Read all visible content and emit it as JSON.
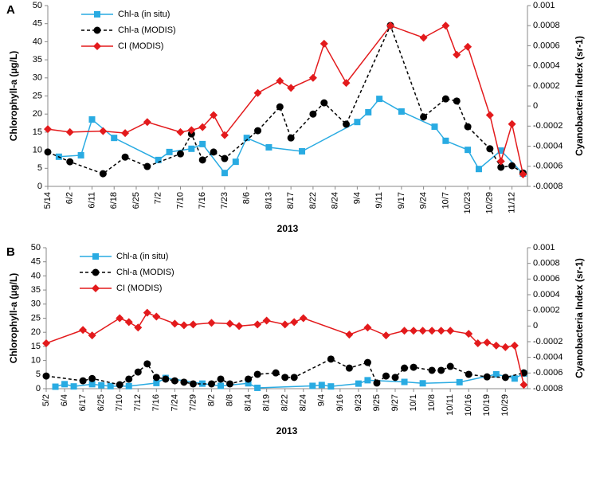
{
  "chart_data": [
    {
      "type": "line",
      "panel": "A",
      "xlabel": "2013",
      "ylabel": "Chlorophyll-a (µg/L)",
      "y2label": "Cyanobacteria Index (sr-1)",
      "categories": [
        "5/14",
        null,
        "6/2",
        null,
        "6/11",
        null,
        "6/18",
        null,
        "6/25",
        null,
        "7/2",
        null,
        "7/10",
        null,
        "7/16",
        null,
        "7/23",
        null,
        "8/6",
        null,
        "8/13",
        null,
        "8/17",
        null,
        "8/22",
        null,
        "8/24",
        null,
        "9/4",
        null,
        "9/11",
        null,
        "9/17",
        null,
        "9/24",
        null,
        "10/7",
        null,
        "10/23",
        null,
        "10/29",
        null,
        "11/12",
        null
      ],
      "ylim": [
        0,
        50
      ],
      "yticks": [
        0,
        5,
        10,
        15,
        20,
        25,
        30,
        35,
        40,
        45,
        50
      ],
      "y2lim": [
        -0.0008,
        0.001
      ],
      "y2ticks": [
        -0.0008,
        -0.0006,
        -0.0004,
        -0.0002,
        0,
        0.0002,
        0.0004,
        0.0006,
        0.0008,
        0.001
      ],
      "series": [
        {
          "name": "Chl-a (in situ)",
          "color": "#29abe2",
          "marker": "square",
          "linestyle": "solid",
          "values": [
            null,
            8.2,
            null,
            8.6,
            18.5,
            null,
            13.4,
            null,
            null,
            null,
            7.3,
            9.5,
            null,
            10.4,
            11.7,
            null,
            3.7,
            6.8,
            13.4,
            null,
            10.8,
            null,
            null,
            9.7,
            null,
            null,
            null,
            null,
            17.8,
            20.5,
            24.2,
            null,
            20.7,
            null,
            null,
            16.5,
            12.6,
            null,
            10.1,
            4.8,
            null,
            9.9,
            null,
            3.5
          ]
        },
        {
          "name": "Chl-a (MODIS)",
          "color": "#000000",
          "marker": "circle",
          "linestyle": "dashed",
          "values": [
            9.5,
            null,
            6.8,
            null,
            null,
            3.5,
            null,
            8.1,
            null,
            5.5,
            null,
            null,
            9,
            14.5,
            7.3,
            9.5,
            7.7,
            null,
            null,
            15.4,
            null,
            22,
            13.4,
            null,
            20,
            23.1,
            null,
            17.2,
            null,
            null,
            null,
            44.5,
            null,
            null,
            19.2,
            null,
            24.2,
            23.6,
            16.5,
            null,
            10.4,
            5.3,
            5.7,
            3.7
          ]
        },
        {
          "name": "CI (MODIS)",
          "color": "#e31a1c",
          "marker": "diamond",
          "linestyle": "solid",
          "axis": "y2",
          "values": [
            -0.00023,
            null,
            -0.00026,
            null,
            null,
            -0.00025,
            null,
            -0.00027,
            null,
            -0.00016,
            null,
            null,
            -0.00026,
            -0.00024,
            -0.00021,
            -9e-05,
            -0.00029,
            null,
            null,
            0.00013,
            null,
            0.00025,
            0.00018,
            null,
            0.00028,
            0.00062,
            null,
            0.00023,
            null,
            null,
            null,
            0.0008,
            null,
            null,
            0.00068,
            null,
            0.0008,
            0.00051,
            0.00059,
            null,
            -9e-05,
            -0.00055,
            -0.00018,
            -0.00068
          ]
        }
      ]
    },
    {
      "type": "line",
      "panel": "B",
      "xlabel": "2013",
      "ylabel": "Chlorophyll-a (µg/L)",
      "y2label": "Cyanobacteria Index (sr-1)",
      "categories": [
        "5/2",
        null,
        "6/4",
        null,
        "6/17",
        null,
        "6/25",
        null,
        "7/10",
        null,
        "7/12",
        null,
        "7/16",
        null,
        "7/24",
        null,
        "7/29",
        null,
        "8/2",
        null,
        "8/8",
        null,
        "8/14",
        null,
        "8/19",
        null,
        "8/22",
        null,
        "8/24",
        null,
        "9/4",
        null,
        "9/16",
        null,
        "9/23",
        null,
        "9/25",
        null,
        "9/27",
        null,
        "10/1",
        null,
        "10/8",
        null,
        "10/11",
        null,
        "10/16",
        null,
        "10/19",
        null,
        "10/29",
        null,
        null
      ],
      "ylim": [
        0,
        50
      ],
      "yticks": [
        0,
        5,
        10,
        15,
        20,
        25,
        30,
        35,
        40,
        45,
        50
      ],
      "y2lim": [
        -0.0008,
        0.001
      ],
      "y2ticks": [
        -0.0008,
        -0.0006,
        -0.0004,
        -0.0002,
        0,
        0.0002,
        0.0004,
        0.0006,
        0.0008,
        0.001
      ],
      "series": [
        {
          "name": "Chl-a (in situ)",
          "color": "#29abe2",
          "marker": "square",
          "linestyle": "solid",
          "values": [
            null,
            0.7,
            1.6,
            0.8,
            null,
            1.6,
            1.2,
            0.9,
            null,
            0.9,
            null,
            null,
            2,
            3.8,
            null,
            null,
            null,
            1.8,
            null,
            1,
            null,
            null,
            1.9,
            0.3,
            null,
            null,
            null,
            null,
            null,
            1,
            1.3,
            0.8,
            null,
            null,
            1.8,
            3,
            null,
            null,
            null,
            2.4,
            null,
            1.9,
            null,
            null,
            null,
            2.3,
            null,
            null,
            null,
            5.1,
            null,
            3.6,
            5.4
          ]
        },
        {
          "name": "Chl-a (MODIS)",
          "color": "#000000",
          "marker": "circle",
          "linestyle": "dashed",
          "values": [
            4.5,
            null,
            null,
            null,
            2.8,
            3.6,
            null,
            null,
            1.4,
            3.4,
            5.9,
            8.8,
            4,
            3.4,
            2.8,
            2.3,
            1.7,
            null,
            1.7,
            3.4,
            1.7,
            null,
            3.4,
            5.1,
            null,
            5.6,
            4,
            4,
            null,
            null,
            null,
            10.5,
            null,
            7.3,
            null,
            9.3,
            2,
            4.5,
            4,
            7.3,
            7.6,
            null,
            6.5,
            6.5,
            7.9,
            null,
            5.1,
            null,
            4.2,
            null,
            4,
            null,
            5.6
          ]
        },
        {
          "name": "CI (MODIS)",
          "color": "#e31a1c",
          "marker": "diamond",
          "linestyle": "solid",
          "axis": "y2",
          "values": [
            -0.00022,
            null,
            null,
            null,
            -5e-05,
            -0.00012,
            null,
            null,
            0.0001,
            5e-05,
            -2e-05,
            0.00017,
            0.00012,
            null,
            3e-05,
            1e-05,
            2e-05,
            null,
            4e-05,
            null,
            3e-05,
            0,
            null,
            2e-05,
            7e-05,
            null,
            2e-05,
            5e-05,
            0.0001,
            null,
            null,
            null,
            null,
            -0.00011,
            null,
            -2e-05,
            null,
            -0.00012,
            null,
            -6e-05,
            -6e-05,
            -6e-05,
            -6e-05,
            -6e-05,
            -6e-05,
            null,
            -0.0001,
            -0.00022,
            -0.00021,
            -0.00025,
            -0.00027,
            -0.00025,
            -0.00075
          ]
        }
      ]
    }
  ]
}
